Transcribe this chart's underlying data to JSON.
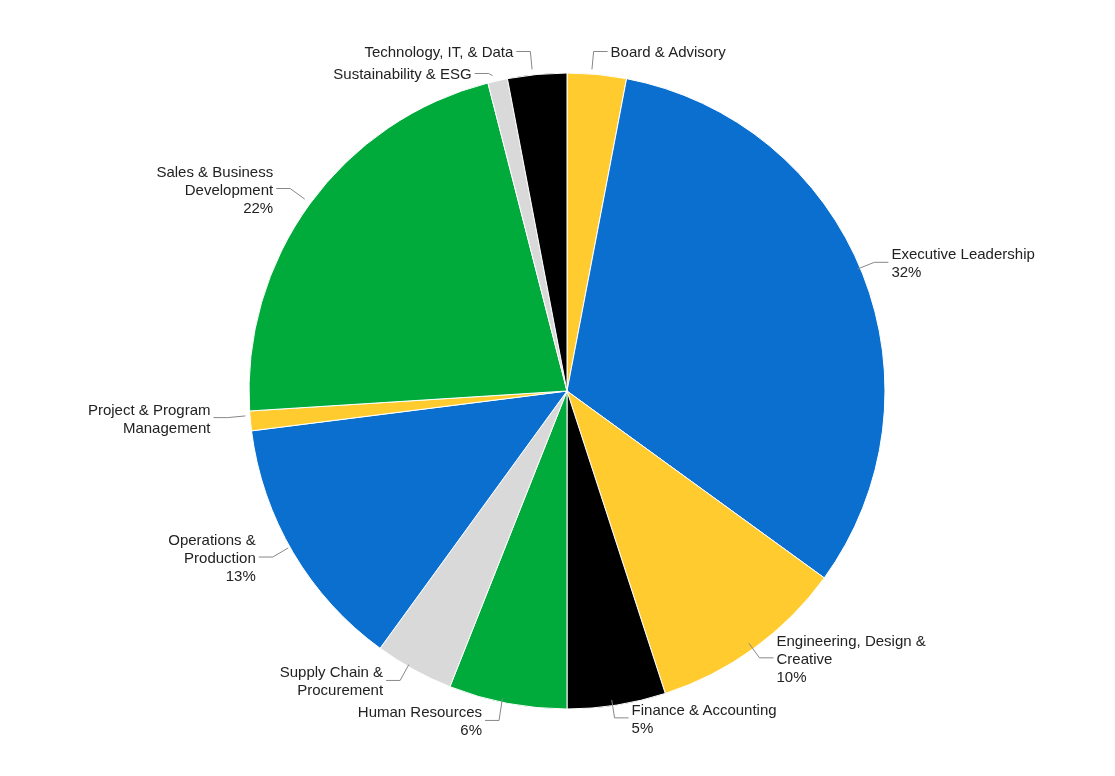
{
  "chart_data": {
    "type": "pie",
    "categories": [
      "Board & Advisory",
      "Executive Leadership",
      "Engineering, Design & Creative",
      "Finance & Accounting",
      "Human Resources",
      "Supply Chain & Procurement",
      "Operations & Production",
      "Project & Program Management",
      "Sales & Business Development",
      "Sustainability & ESG",
      "Technology, IT, & Data"
    ],
    "values": [
      3,
      32,
      10,
      5,
      6,
      4,
      13,
      1,
      22,
      1,
      3
    ],
    "value_labels": [
      null,
      "32%",
      "10%",
      "5%",
      "6%",
      null,
      "13%",
      null,
      "22%",
      null,
      null
    ],
    "colors": [
      "#ffcb2f",
      "#0a6fce",
      "#ffcb2f",
      "#000000",
      "#00ab3c",
      "#d9d9d9",
      "#0a6fce",
      "#ffcb2f",
      "#00ab3c",
      "#d9d9d9",
      "#000000"
    ],
    "legend": false
  }
}
